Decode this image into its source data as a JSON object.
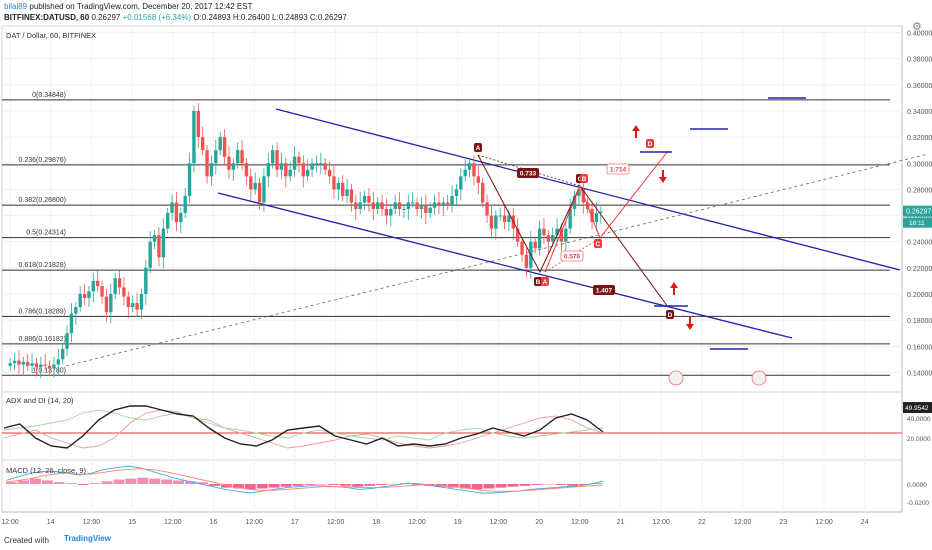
{
  "header": {
    "user": "bilal89",
    "published": "published on TradingView.com, December 20, 2017 12:42 EST",
    "symbol": "BITFINEX:DATUSD, 60",
    "last": "0.26297",
    "change": "+0.01568 (+6.34%)",
    "ohlc": "O:0.24893 H:0.26400 L:0.24893 C:0.26297"
  },
  "main_title": "DAT / Dollar, 60, BITFINEX",
  "adx_title": "ADX and DI (14, 20)",
  "macd_title": "MACD (12, 26, close, 9)",
  "footer": {
    "created": "Created with",
    "brand": "TradingView"
  },
  "colors": {
    "up": "#26a69a",
    "down": "#ef5350",
    "channel": "#1e22aa",
    "pattern_dark": "#7a1414",
    "pattern_red": "#ef3b3b",
    "target": "#e01a1a"
  },
  "chart_data": [
    {
      "type": "candlestick",
      "title": "DAT / Dollar, 60, BITFINEX",
      "y_ticks": [
        "0.40000",
        "0.38000",
        "0.36000",
        "0.34000",
        "0.32000",
        "0.30000",
        "0.28000",
        "0.26000",
        "0.24000",
        "0.22000",
        "0.20000",
        "0.18000",
        "0.16000",
        "0.14000"
      ],
      "ylim": [
        0.125,
        0.405
      ],
      "x_ticks": [
        "12:00",
        "14",
        "12:00",
        "15",
        "12:00",
        "16",
        "12:00",
        "17",
        "12:00",
        "18",
        "12:00",
        "19",
        "12:00",
        "20",
        "12:00",
        "21",
        "12:00",
        "22",
        "12:00",
        "23",
        "12:00",
        "24"
      ],
      "last_price_label": "0.26297",
      "countdown_label": "18:11",
      "fib_levels": [
        {
          "label": "0(0.34848)",
          "value": 0.34848
        },
        {
          "label": "0.236(0.29876)",
          "value": 0.29876
        },
        {
          "label": "0.382(0.26800)",
          "value": 0.268
        },
        {
          "label": "0.5(0.24314)",
          "value": 0.24314
        },
        {
          "label": "0.618(0.21828)",
          "value": 0.21828
        },
        {
          "label": "0.786(0.18289)",
          "value": 0.18289
        },
        {
          "label": "0.886(0.16182)",
          "value": 0.16182
        },
        {
          "label": "1(0.13780)",
          "value": 0.1378
        }
      ],
      "pattern_points": [
        "A",
        "B",
        "C",
        "D"
      ],
      "pattern_ratios": [
        "0.733",
        "0.576",
        "1.714",
        "1.407"
      ],
      "close_series": [
        0.147,
        0.149,
        0.146,
        0.148,
        0.145,
        0.147,
        0.144,
        0.146,
        0.145,
        0.143,
        0.146,
        0.15,
        0.158,
        0.17,
        0.185,
        0.19,
        0.2,
        0.197,
        0.202,
        0.21,
        0.206,
        0.198,
        0.186,
        0.2,
        0.212,
        0.205,
        0.198,
        0.19,
        0.193,
        0.188,
        0.2,
        0.22,
        0.24,
        0.245,
        0.228,
        0.25,
        0.262,
        0.27,
        0.255,
        0.262,
        0.275,
        0.3,
        0.34,
        0.32,
        0.31,
        0.29,
        0.3,
        0.31,
        0.32,
        0.305,
        0.295,
        0.3,
        0.31,
        0.3,
        0.29,
        0.28,
        0.285,
        0.27,
        0.29,
        0.3,
        0.31,
        0.295,
        0.3,
        0.29,
        0.295,
        0.305,
        0.3,
        0.29,
        0.295,
        0.3,
        0.3,
        0.3,
        0.295,
        0.29,
        0.28,
        0.285,
        0.275,
        0.28,
        0.27,
        0.265,
        0.27,
        0.275,
        0.27,
        0.265,
        0.27,
        0.265,
        0.26,
        0.265,
        0.27,
        0.265,
        0.265,
        0.27,
        0.27,
        0.265,
        0.268,
        0.262,
        0.266,
        0.27,
        0.268,
        0.27,
        0.268,
        0.275,
        0.28,
        0.29,
        0.295,
        0.3,
        0.29,
        0.285,
        0.27,
        0.26,
        0.25,
        0.26,
        0.26,
        0.255,
        0.26,
        0.25,
        0.24,
        0.23,
        0.22,
        0.24,
        0.235,
        0.25,
        0.245,
        0.24,
        0.245,
        0.25,
        0.24,
        0.25,
        0.265,
        0.275,
        0.28,
        0.27,
        0.265,
        0.255,
        0.262,
        0.26297
      ]
    },
    {
      "type": "line",
      "title": "ADX and DI (14, 20)",
      "y_ticks": [
        "40.0000",
        "20.0000"
      ],
      "last_value_label": "49.9542",
      "threshold": 25,
      "series": [
        {
          "values": [
            20,
            24,
            28,
            20,
            15,
            10,
            12,
            20,
            35,
            45,
            48,
            46,
            40,
            38,
            30,
            25,
            20,
            15,
            10,
            12,
            15,
            18,
            22,
            24,
            20,
            15,
            12,
            10,
            12,
            15,
            20,
            25,
            30,
            35,
            40,
            42,
            38,
            30,
            25
          ]
        },
        {
          "values": [
            28,
            30,
            32,
            35,
            38,
            45,
            48,
            45,
            40,
            38,
            42,
            45,
            40,
            35,
            30,
            28,
            25,
            22,
            20,
            25,
            28,
            25,
            22,
            20,
            18,
            22,
            20,
            18,
            25,
            28,
            30,
            25,
            22,
            20,
            22,
            24,
            26,
            28,
            30
          ]
        },
        {
          "values": [
            30,
            34,
            20,
            12,
            10,
            22,
            38,
            48,
            52,
            52,
            48,
            44,
            42,
            30,
            20,
            14,
            12,
            18,
            28,
            30,
            32,
            22,
            18,
            14,
            20,
            12,
            14,
            12,
            14,
            20,
            24,
            30,
            26,
            22,
            28,
            40,
            44,
            38,
            26
          ]
        }
      ]
    },
    {
      "type": "bar",
      "title": "MACD (12, 26, close, 9)",
      "y_ticks": [
        "0.0000",
        "-0.0200"
      ],
      "histogram": [
        0.002,
        0.004,
        0.006,
        0.004,
        0.002,
        0.001,
        -0.001,
        0.001,
        0.003,
        0.005,
        0.006,
        0.007,
        0.006,
        0.005,
        0.004,
        0.003,
        0.002,
        -0.002,
        -0.004,
        -0.005,
        -0.006,
        -0.005,
        -0.004,
        -0.003,
        -0.002,
        -0.001,
        0.0,
        -0.001,
        -0.002,
        -0.003,
        -0.002,
        -0.001,
        0.0,
        0.001,
        -0.001,
        -0.002,
        -0.003,
        -0.004,
        -0.005,
        -0.006,
        -0.005,
        -0.004,
        -0.003,
        -0.002,
        -0.001,
        0.0,
        -0.001,
        -0.002,
        -0.001,
        0.001
      ],
      "series": [
        {
          "values": [
            0.004,
            0.008,
            0.012,
            0.014,
            0.014,
            0.012,
            0.01,
            0.012,
            0.016,
            0.018,
            0.02,
            0.018,
            0.014,
            0.01,
            0.006,
            0.003,
            0.0,
            -0.003,
            -0.006,
            -0.008,
            -0.01,
            -0.008,
            -0.006,
            -0.004,
            -0.003,
            -0.002,
            -0.002,
            -0.003,
            -0.004,
            -0.006,
            -0.005,
            -0.003,
            -0.001,
            0.001,
            0.0,
            -0.002,
            -0.004,
            -0.006,
            -0.008,
            -0.01,
            -0.01,
            -0.009,
            -0.008,
            -0.006,
            -0.005,
            -0.004,
            -0.003,
            -0.002,
            0.0,
            0.003
          ]
        },
        {
          "values": [
            0.002,
            0.004,
            0.006,
            0.009,
            0.011,
            0.012,
            0.011,
            0.011,
            0.013,
            0.015,
            0.016,
            0.017,
            0.016,
            0.014,
            0.011,
            0.008,
            0.005,
            0.002,
            -0.001,
            -0.004,
            -0.006,
            -0.007,
            -0.007,
            -0.006,
            -0.005,
            -0.004,
            -0.003,
            -0.003,
            -0.003,
            -0.004,
            -0.004,
            -0.004,
            -0.003,
            -0.002,
            -0.001,
            -0.001,
            -0.002,
            -0.003,
            -0.005,
            -0.007,
            -0.008,
            -0.008,
            -0.008,
            -0.007,
            -0.006,
            -0.005,
            -0.004,
            -0.003,
            -0.002,
            -0.001
          ]
        }
      ]
    }
  ]
}
